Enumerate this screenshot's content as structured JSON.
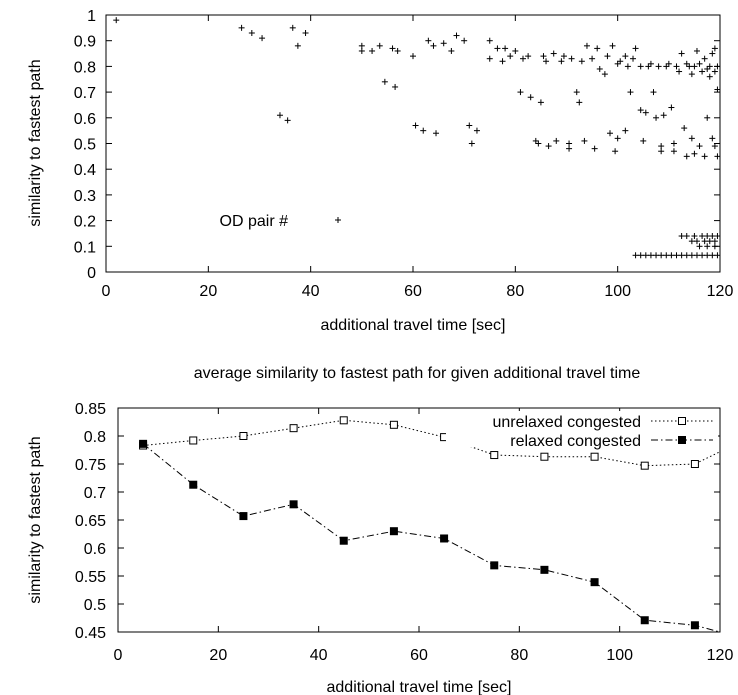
{
  "chart_data": [
    {
      "type": "scatter",
      "xlabel": "additional travel time [sec]",
      "ylabel": "similarity to fastest path",
      "xlim": [
        0,
        120
      ],
      "ylim": [
        0,
        1
      ],
      "xticks": [
        "0",
        "20",
        "40",
        "60",
        "80",
        "100",
        "120"
      ],
      "yticks": [
        "0",
        "0.1",
        "0.2",
        "0.3",
        "0.4",
        "0.5",
        "0.6",
        "0.7",
        "0.8",
        "0.9",
        "1"
      ],
      "legend": "inside-lower-left",
      "grid": false,
      "series": [
        {
          "name": "OD pair #",
          "marker": "plus",
          "points": [
            [
              2,
              0.98
            ],
            [
              26.5,
              0.95
            ],
            [
              28.5,
              0.93
            ],
            [
              30.5,
              0.91
            ],
            [
              34,
              0.61
            ],
            [
              35.5,
              0.59
            ],
            [
              36.5,
              0.95
            ],
            [
              37.5,
              0.88
            ],
            [
              39,
              0.93
            ],
            [
              50,
              0.88
            ],
            [
              50,
              0.86
            ],
            [
              52,
              0.86
            ],
            [
              53.5,
              0.88
            ],
            [
              54.5,
              0.74
            ],
            [
              56,
              0.87
            ],
            [
              57,
              0.86
            ],
            [
              56.5,
              0.72
            ],
            [
              60,
              0.84
            ],
            [
              60.5,
              0.57
            ],
            [
              62,
              0.55
            ],
            [
              63,
              0.9
            ],
            [
              64,
              0.88
            ],
            [
              64.5,
              0.54
            ],
            [
              66,
              0.89
            ],
            [
              67.5,
              0.86
            ],
            [
              68.5,
              0.92
            ],
            [
              70,
              0.9
            ],
            [
              71,
              0.57
            ],
            [
              71.5,
              0.5
            ],
            [
              72.5,
              0.55
            ],
            [
              75,
              0.9
            ],
            [
              75,
              0.83
            ],
            [
              76.5,
              0.87
            ],
            [
              77.5,
              0.82
            ],
            [
              78,
              0.87
            ],
            [
              79,
              0.84
            ],
            [
              80,
              0.86
            ],
            [
              81,
              0.7
            ],
            [
              81.5,
              0.83
            ],
            [
              82.5,
              0.84
            ],
            [
              83,
              0.68
            ],
            [
              84,
              0.51
            ],
            [
              84.5,
              0.5
            ],
            [
              85,
              0.66
            ],
            [
              85.5,
              0.84
            ],
            [
              86,
              0.82
            ],
            [
              86.5,
              0.49
            ],
            [
              87.5,
              0.85
            ],
            [
              88,
              0.51
            ],
            [
              89,
              0.82
            ],
            [
              89.5,
              0.84
            ],
            [
              90.5,
              0.5
            ],
            [
              90.5,
              0.48
            ],
            [
              91,
              0.83
            ],
            [
              92,
              0.7
            ],
            [
              92.5,
              0.66
            ],
            [
              93,
              0.82
            ],
            [
              93.5,
              0.51
            ],
            [
              94,
              0.88
            ],
            [
              95,
              0.83
            ],
            [
              95.5,
              0.48
            ],
            [
              96,
              0.87
            ],
            [
              96.5,
              0.79
            ],
            [
              97.5,
              0.77
            ],
            [
              98,
              0.84
            ],
            [
              98.5,
              0.54
            ],
            [
              99,
              0.88
            ],
            [
              99.5,
              0.47
            ],
            [
              100,
              0.81
            ],
            [
              100,
              0.52
            ],
            [
              100.5,
              0.82
            ],
            [
              101.5,
              0.84
            ],
            [
              101.5,
              0.55
            ],
            [
              102,
              0.8
            ],
            [
              102.5,
              0.7
            ],
            [
              103,
              0.83
            ],
            [
              103.5,
              0.87
            ],
            [
              104.5,
              0.8
            ],
            [
              104.5,
              0.63
            ],
            [
              105,
              0.51
            ],
            [
              105.5,
              0.62
            ],
            [
              106,
              0.8
            ],
            [
              106.5,
              0.81
            ],
            [
              107,
              0.7
            ],
            [
              107.5,
              0.6
            ],
            [
              108,
              0.8
            ],
            [
              108.5,
              0.49
            ],
            [
              108.5,
              0.47
            ],
            [
              109,
              0.61
            ],
            [
              109.5,
              0.8
            ],
            [
              110,
              0.81
            ],
            [
              110.5,
              0.64
            ],
            [
              111,
              0.5
            ],
            [
              111,
              0.47
            ],
            [
              111.5,
              0.8
            ],
            [
              112,
              0.78
            ],
            [
              112.5,
              0.85
            ],
            [
              113,
              0.56
            ],
            [
              113.5,
              0.45
            ],
            [
              113.5,
              0.81
            ],
            [
              114,
              0.8
            ],
            [
              114.5,
              0.77
            ],
            [
              114.5,
              0.52
            ],
            [
              115,
              0.8
            ],
            [
              115,
              0.46
            ],
            [
              115.5,
              0.86
            ],
            [
              116,
              0.81
            ],
            [
              116,
              0.49
            ],
            [
              116.5,
              0.78
            ],
            [
              117,
              0.83
            ],
            [
              117,
              0.45
            ],
            [
              117.5,
              0.79
            ],
            [
              117.5,
              0.6
            ],
            [
              118,
              0.76
            ],
            [
              118,
              0.8
            ],
            [
              118.5,
              0.85
            ],
            [
              118.5,
              0.52
            ],
            [
              119,
              0.78
            ],
            [
              119,
              0.87
            ],
            [
              119,
              0.49
            ],
            [
              119.5,
              0.71
            ],
            [
              119.5,
              0.8
            ],
            [
              119.5,
              0.45
            ],
            [
              112.5,
              0.14
            ],
            [
              113.5,
              0.14
            ],
            [
              114.5,
              0.12
            ],
            [
              115,
              0.14
            ],
            [
              115.5,
              0.12
            ],
            [
              116.5,
              0.14
            ],
            [
              117,
              0.12
            ],
            [
              117.5,
              0.14
            ],
            [
              118,
              0.12
            ],
            [
              118.5,
              0.14
            ],
            [
              119,
              0.12
            ],
            [
              119.5,
              0.14
            ],
            [
              116,
              0.1
            ],
            [
              117.5,
              0.1
            ],
            [
              119,
              0.1
            ],
            [
              103.5,
              0.065
            ],
            [
              104.5,
              0.065
            ],
            [
              105.5,
              0.065
            ],
            [
              106.5,
              0.065
            ],
            [
              107.5,
              0.065
            ],
            [
              108.5,
              0.065
            ],
            [
              109.5,
              0.065
            ],
            [
              110.5,
              0.065
            ],
            [
              111.5,
              0.065
            ],
            [
              112.5,
              0.065
            ],
            [
              113.5,
              0.065
            ],
            [
              114.5,
              0.065
            ],
            [
              115.5,
              0.065
            ],
            [
              116.5,
              0.065
            ],
            [
              117.5,
              0.065
            ],
            [
              118.5,
              0.065
            ],
            [
              119.5,
              0.065
            ]
          ]
        }
      ]
    },
    {
      "type": "line",
      "title": "average similarity to fastest path for given additional travel time",
      "xlabel": "additional travel time [sec]",
      "ylabel": "similarity to fastest path",
      "xlim": [
        0,
        120
      ],
      "ylim": [
        0.45,
        0.85
      ],
      "xticks": [
        "0",
        "20",
        "40",
        "60",
        "80",
        "100",
        "120"
      ],
      "yticks": [
        "0.45",
        "0.5",
        "0.55",
        "0.6",
        "0.65",
        "0.7",
        "0.75",
        "0.8",
        "0.85"
      ],
      "legend": "top-right",
      "grid": false,
      "x": [
        5,
        15,
        25,
        35,
        45,
        55,
        65,
        75,
        85,
        95,
        105,
        115,
        120
      ],
      "series": [
        {
          "name": "unrelaxed congested",
          "marker": "open-square",
          "line": "dotted",
          "values": [
            0.783,
            0.792,
            0.8,
            0.814,
            0.828,
            0.82,
            0.798,
            0.766,
            0.763,
            0.763,
            0.747,
            0.75,
            0.772
          ]
        },
        {
          "name": "relaxed congested",
          "marker": "filled-square",
          "line": "dash-dot",
          "values": [
            0.786,
            0.713,
            0.657,
            0.678,
            0.613,
            0.63,
            0.617,
            0.569,
            0.561,
            0.539,
            0.471,
            0.462,
            0.45
          ]
        }
      ]
    }
  ]
}
